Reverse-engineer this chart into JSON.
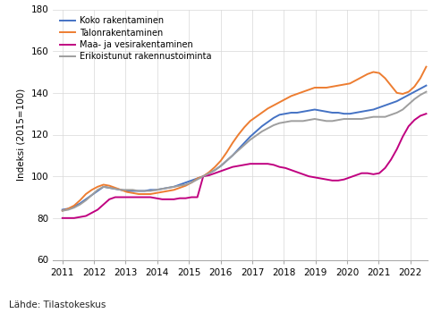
{
  "ylabel": "Indeksi (2015=100)",
  "source_text": "Lähde: Tilastokeskus",
  "ylim": [
    60,
    180
  ],
  "yticks": [
    60,
    80,
    100,
    120,
    140,
    160,
    180
  ],
  "xlim": [
    2010.7,
    2022.55
  ],
  "xticks": [
    2011,
    2012,
    2013,
    2014,
    2015,
    2016,
    2017,
    2018,
    2019,
    2020,
    2021,
    2022
  ],
  "legend_labels": [
    "Koko rakentaminen",
    "Talonrakentaminen",
    "Maa- ja vesirakentaminen",
    "Erikoistunut rakennustoiminta"
  ],
  "colors": [
    "#4472C4",
    "#ED7D31",
    "#C00080",
    "#9E9E9E"
  ],
  "line_width": 1.4,
  "background_color": "#FFFFFF",
  "grid_color": "#D8D8D8",
  "series": {
    "koko": [
      84.0,
      84.5,
      85.5,
      87.0,
      89.0,
      91.0,
      93.0,
      95.0,
      94.5,
      94.0,
      93.5,
      93.0,
      93.0,
      93.0,
      93.0,
      93.5,
      93.5,
      94.0,
      94.5,
      95.0,
      96.0,
      97.0,
      98.0,
      99.0,
      100.0,
      101.5,
      103.0,
      105.0,
      107.5,
      110.0,
      113.0,
      116.0,
      119.0,
      121.5,
      124.0,
      126.0,
      128.0,
      129.5,
      130.0,
      130.5,
      130.5,
      131.0,
      131.5,
      132.0,
      131.5,
      131.0,
      130.5,
      130.5,
      130.0,
      130.0,
      130.5,
      131.0,
      131.5,
      132.0,
      133.0,
      134.0,
      135.0,
      136.0,
      137.5,
      139.0,
      140.5,
      142.0,
      143.5
    ],
    "talonrak": [
      83.5,
      84.5,
      86.0,
      88.5,
      91.5,
      93.5,
      95.0,
      96.0,
      95.5,
      94.5,
      93.5,
      92.5,
      92.0,
      91.5,
      91.5,
      91.5,
      92.0,
      92.5,
      93.0,
      93.5,
      94.5,
      95.5,
      97.0,
      99.0,
      100.0,
      102.0,
      104.5,
      107.5,
      111.5,
      116.0,
      120.0,
      123.5,
      126.5,
      128.5,
      130.5,
      132.5,
      134.0,
      135.5,
      137.0,
      138.5,
      139.5,
      140.5,
      141.5,
      142.5,
      142.5,
      142.5,
      143.0,
      143.5,
      144.0,
      144.5,
      146.0,
      147.5,
      149.0,
      150.0,
      149.5,
      147.0,
      143.5,
      140.0,
      139.5,
      140.5,
      143.0,
      147.0,
      152.5
    ],
    "maa": [
      80.0,
      80.0,
      80.0,
      80.5,
      81.0,
      82.5,
      84.0,
      86.5,
      89.0,
      90.0,
      90.0,
      90.0,
      90.0,
      90.0,
      90.0,
      90.0,
      89.5,
      89.0,
      89.0,
      89.0,
      89.5,
      89.5,
      90.0,
      90.0,
      100.0,
      100.5,
      101.5,
      102.5,
      103.5,
      104.5,
      105.0,
      105.5,
      106.0,
      106.0,
      106.0,
      106.0,
      105.5,
      104.5,
      104.0,
      103.0,
      102.0,
      101.0,
      100.0,
      99.5,
      99.0,
      98.5,
      98.0,
      98.0,
      98.5,
      99.5,
      100.5,
      101.5,
      101.5,
      101.0,
      101.5,
      104.0,
      108.0,
      113.0,
      119.0,
      124.0,
      127.0,
      129.0,
      130.0
    ],
    "erikois": [
      83.5,
      84.0,
      85.0,
      86.5,
      88.5,
      91.0,
      93.5,
      95.0,
      94.5,
      94.0,
      93.5,
      93.5,
      93.5,
      93.0,
      93.0,
      93.0,
      93.5,
      94.0,
      94.5,
      95.0,
      95.5,
      96.0,
      97.0,
      98.5,
      100.0,
      101.5,
      103.0,
      105.0,
      107.5,
      110.0,
      112.5,
      115.0,
      117.5,
      119.5,
      121.5,
      123.0,
      124.5,
      125.5,
      126.0,
      126.5,
      126.5,
      126.5,
      127.0,
      127.5,
      127.0,
      126.5,
      126.5,
      127.0,
      127.5,
      127.5,
      127.5,
      127.5,
      128.0,
      128.5,
      128.5,
      128.5,
      129.5,
      130.5,
      132.0,
      134.5,
      137.0,
      139.0,
      140.5
    ]
  }
}
